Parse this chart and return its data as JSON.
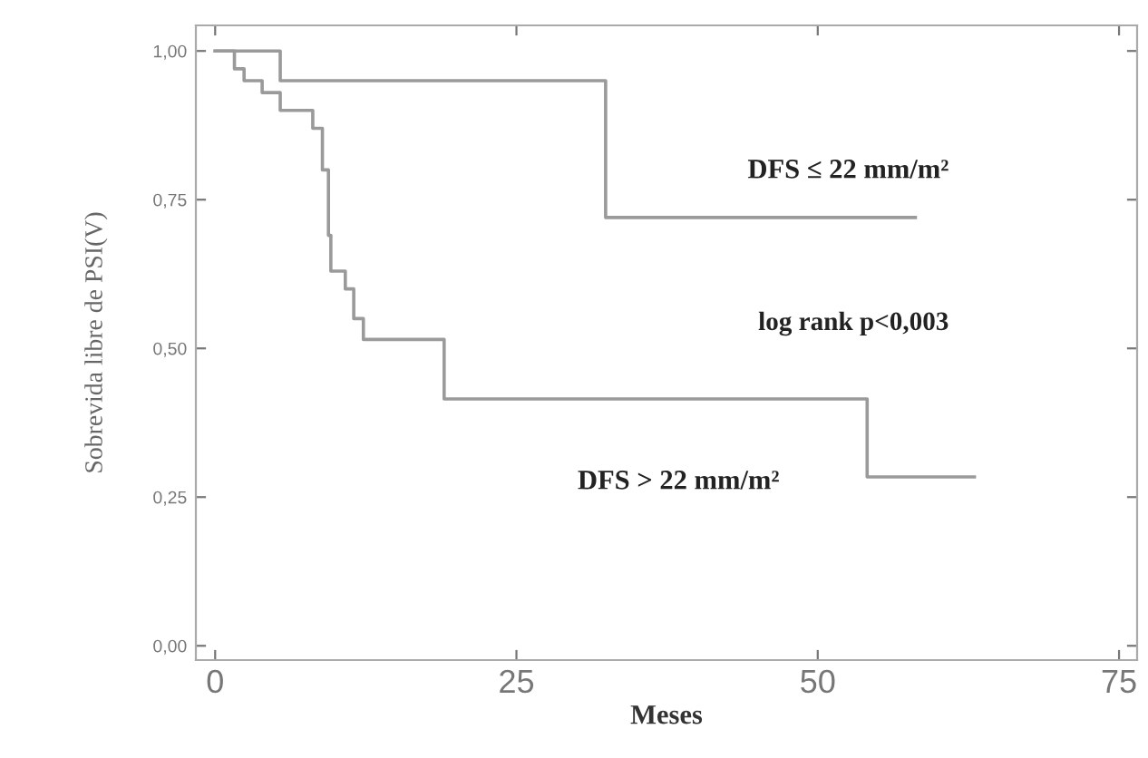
{
  "chart_data": {
    "type": "step",
    "xlabel": "Meses",
    "ylabel": "Sobrevida libre de PSI(V)",
    "xlim": [
      -1.6,
      76.5
    ],
    "ylim": [
      -0.024,
      1.043
    ],
    "xticks": [
      0,
      25,
      50,
      75
    ],
    "yticks": [
      {
        "value": 0,
        "label": "0,00"
      },
      {
        "value": 0.25,
        "label": "0,25"
      },
      {
        "value": 0.5,
        "label": "0,50"
      },
      {
        "value": 0.75,
        "label": "0,75"
      },
      {
        "value": 1,
        "label": "1,00"
      }
    ],
    "grid": false,
    "legend": false,
    "series": [
      {
        "name": "DFS ≤ 22 mm/m²",
        "color": "#9a9a9a",
        "x": [
          0,
          5.4,
          32.4,
          58.1
        ],
        "values": [
          1.0,
          0.95,
          0.72,
          0.72
        ]
      },
      {
        "name": "DFS > 22 mm/m²",
        "color": "#9a9a9a",
        "x": [
          0,
          1.6,
          2.4,
          3.9,
          5.4,
          8.1,
          8.9,
          9.4,
          9.6,
          10.8,
          11.5,
          12.3,
          19,
          54.1,
          63
        ],
        "values": [
          1.0,
          0.97,
          0.95,
          0.93,
          0.9,
          0.87,
          0.8,
          0.69,
          0.63,
          0.6,
          0.55,
          0.515,
          0.415,
          0.284,
          0.284
        ]
      }
    ],
    "annotations": [
      "log rank p<0,003"
    ]
  }
}
